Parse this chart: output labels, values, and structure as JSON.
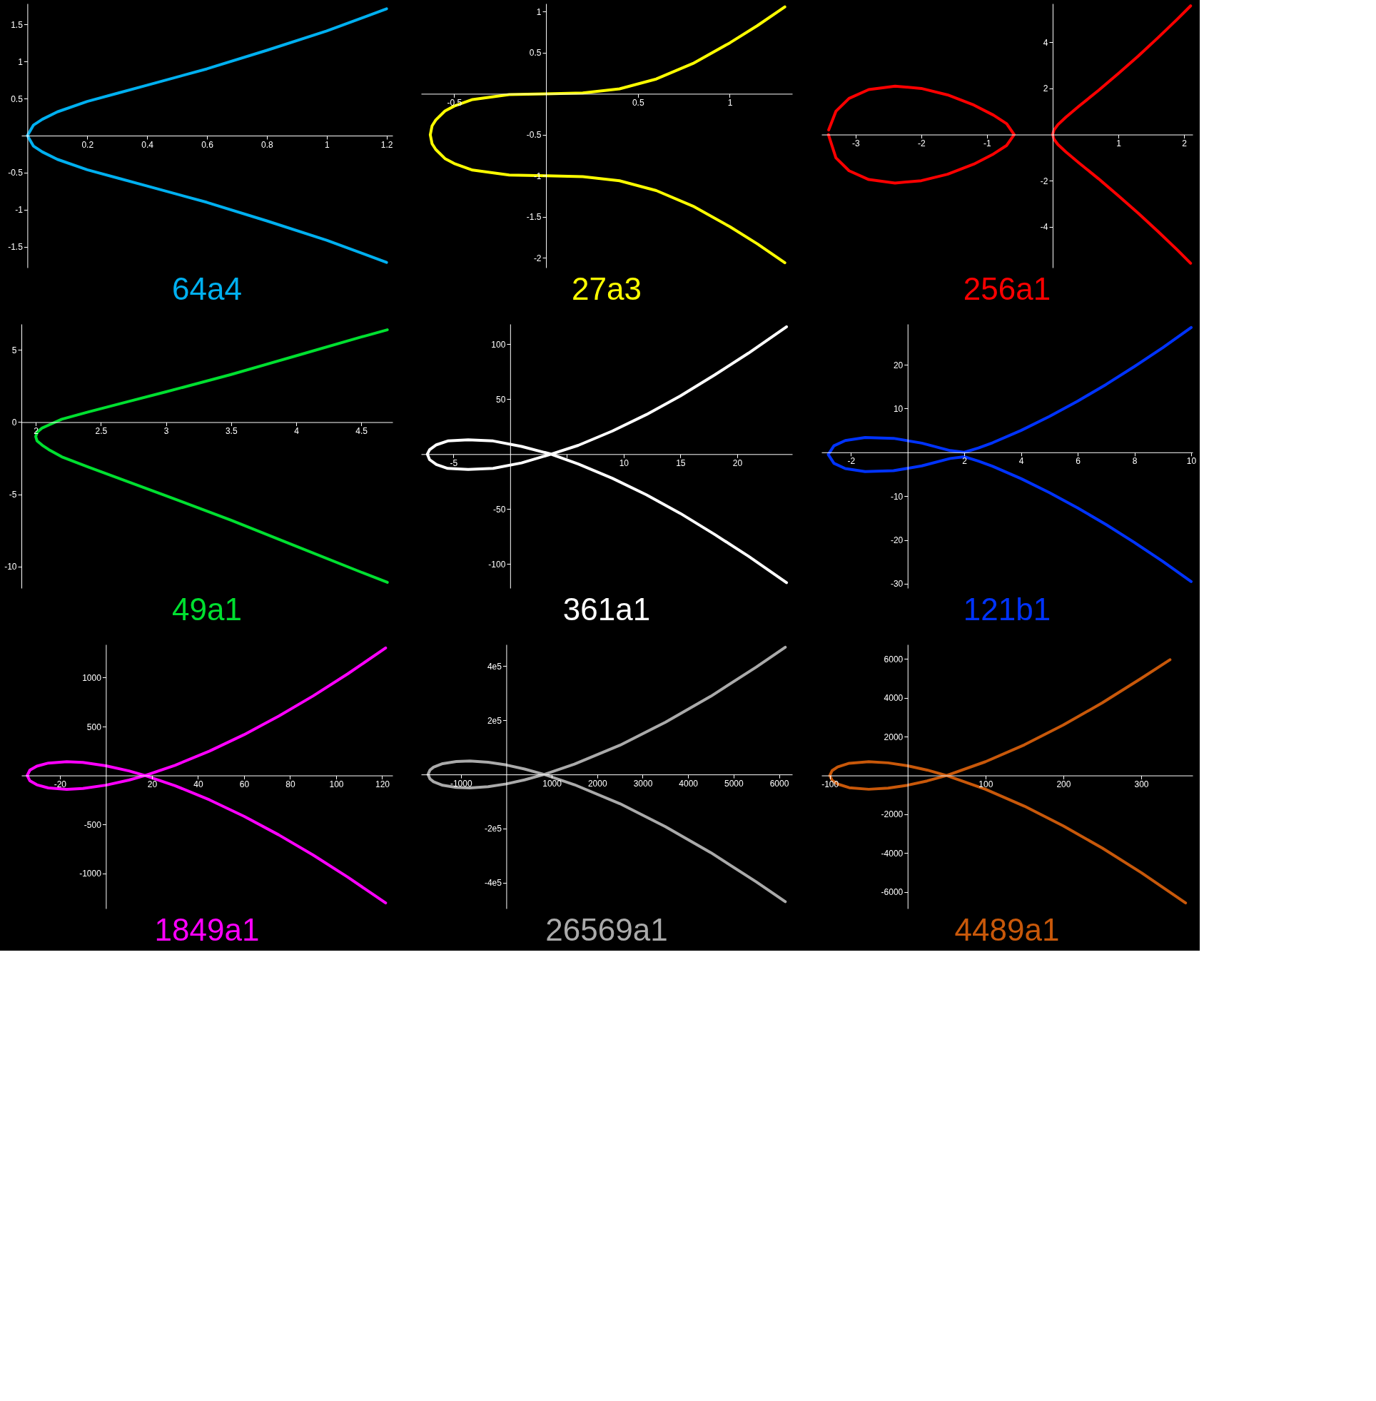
{
  "chart_data": [
    {
      "type": "line",
      "title": "64a4",
      "xlim": [
        -0.02,
        1.22
      ],
      "ylim": [
        -1.78,
        1.78
      ],
      "xticks": [
        0.2,
        0.4,
        0.6,
        0.8,
        1,
        1.2
      ],
      "yticks": [
        -1.5,
        -1,
        -0.5,
        0.5,
        1,
        1.5
      ],
      "grid": false,
      "series": [
        {
          "color": "#00b0f0",
          "x": [
            1.2,
            1.0,
            0.8,
            0.6,
            0.4,
            0.3,
            0.2,
            0.1,
            0.05,
            0.02,
            0,
            0.02,
            0.05,
            0.1,
            0.2,
            0.3,
            0.4,
            0.6,
            0.8,
            1.0,
            1.2
          ],
          "values": [
            -1.71,
            -1.41,
            -1.15,
            -0.9,
            -0.68,
            -0.57,
            -0.46,
            -0.32,
            -0.22,
            -0.14,
            0,
            0.14,
            0.22,
            0.32,
            0.46,
            0.57,
            0.68,
            0.9,
            1.15,
            1.41,
            1.71
          ]
        }
      ]
    },
    {
      "type": "line",
      "title": "256a1",
      "xlim": [
        -3.52,
        2.13
      ],
      "ylim": [
        -5.77,
        5.68
      ],
      "xticks": [
        -3,
        -2,
        -1,
        1,
        2
      ],
      "yticks": [
        -4,
        -2,
        2,
        4
      ],
      "grid": false,
      "series": [
        {
          "color": "#ff0000",
          "x": [
            -3.414,
            -3.3,
            -3.1,
            -2.8,
            -2.4,
            -2.0,
            -1.6,
            -1.2,
            -0.9,
            -0.7,
            -0.586,
            -0.7,
            -0.9,
            -1.2,
            -1.6,
            -2.0,
            -2.4,
            -2.8,
            -3.1,
            -3.3,
            -3.41
          ],
          "values": [
            0,
            -1.01,
            -1.57,
            -1.95,
            -2.1,
            -2.0,
            -1.72,
            -1.28,
            -0.84,
            -0.47,
            0,
            0.47,
            0.84,
            1.28,
            1.72,
            2.0,
            2.1,
            1.95,
            1.57,
            1.01,
            0.2
          ]
        },
        {
          "color": "#ff0000",
          "x": [
            2.1,
            1.9,
            1.6,
            1.3,
            1.0,
            0.7,
            0.4,
            0.2,
            0.08,
            0.02,
            0,
            0.02,
            0.08,
            0.2,
            0.4,
            0.7,
            1.0,
            1.3,
            1.6,
            1.9,
            2.1
          ],
          "values": [
            -5.58,
            -5.01,
            -4.19,
            -3.4,
            -2.65,
            -1.92,
            -1.23,
            -0.75,
            -0.43,
            -0.2,
            0,
            0.2,
            0.43,
            0.75,
            1.23,
            1.92,
            2.65,
            3.4,
            4.19,
            5.01,
            5.58
          ]
        }
      ]
    },
    {
      "type": "line",
      "title": "27a3",
      "xlim": [
        -0.68,
        1.34
      ],
      "ylim": [
        -2.12,
        1.1
      ],
      "xticks": [
        -0.5,
        0.5,
        1
      ],
      "yticks": [
        -2,
        -1.5,
        -1,
        -0.5,
        0.5,
        1
      ],
      "grid": false,
      "series": [
        {
          "color": "#ffff00",
          "x": [
            1.3,
            1.15,
            1.0,
            0.8,
            0.6,
            0.4,
            0.2,
            0,
            -0.2,
            -0.4,
            -0.5,
            -0.55,
            -0.6,
            -0.62,
            -0.63,
            -0.62,
            -0.6,
            -0.55,
            -0.5,
            -0.4,
            -0.2,
            0,
            0.2,
            0.4,
            0.6,
            0.8,
            1.0,
            1.15,
            1.3
          ],
          "values": [
            -2.06,
            -1.83,
            -1.62,
            -1.37,
            -1.18,
            -1.06,
            -1.01,
            -1,
            -0.99,
            -0.93,
            -0.85,
            -0.79,
            -0.68,
            -0.61,
            -0.5,
            -0.39,
            -0.32,
            -0.21,
            -0.15,
            -0.07,
            -0.01,
            0,
            0.01,
            0.06,
            0.18,
            0.37,
            0.62,
            0.83,
            1.06
          ]
        }
      ]
    },
    {
      "type": "line",
      "title": "49a1",
      "xlim": [
        1.89,
        4.74
      ],
      "ylim": [
        -11.5,
        6.8
      ],
      "xticks": [
        2,
        2.5,
        3,
        3.5,
        4,
        4.5
      ],
      "yticks": [
        -10,
        -5,
        0,
        5
      ],
      "grid": false,
      "series": [
        {
          "color": "#00e030",
          "x": [
            4.7,
            4.5,
            4.0,
            3.5,
            3.0,
            2.7,
            2.4,
            2.2,
            2.1,
            2.05,
            2.01,
            2,
            2.01,
            2.05,
            2.1,
            2.2,
            2.4,
            2.7,
            3.0,
            3.5,
            4.0,
            4.5,
            4.7
          ],
          "values": [
            -11.1,
            -10.4,
            -8.6,
            -6.8,
            -5.1,
            -4.1,
            -3.1,
            -2.4,
            -1.9,
            -1.6,
            -1.3,
            -1,
            -0.7,
            -0.4,
            -0.2,
            0.2,
            0.7,
            1.4,
            2.1,
            3.3,
            4.6,
            5.9,
            6.4
          ]
        }
      ]
    },
    {
      "type": "line",
      "title": "121b1",
      "xlim": [
        -3.04,
        10.05
      ],
      "ylim": [
        -31,
        29.3
      ],
      "xticks": [
        -2,
        2,
        4,
        6,
        8,
        10
      ],
      "yticks": [
        -30,
        -20,
        -10,
        10,
        20
      ],
      "grid": false,
      "series": [
        {
          "color": "#0033ff",
          "x": [
            10,
            9,
            8,
            7,
            6,
            5,
            4,
            3,
            2.5,
            2,
            1.5,
            0.5,
            -0.5,
            -1.5,
            -2.2,
            -2.6,
            -2.8,
            -2.6,
            -2.2,
            -1.5,
            -0.5,
            0.5,
            1.5,
            2,
            2.5,
            3,
            4,
            5,
            6,
            7,
            8,
            9,
            10
          ],
          "values": [
            -29.5,
            -24.9,
            -20.6,
            -16.5,
            -12.7,
            -9.2,
            -6,
            -3.2,
            -2,
            -1,
            -1.4,
            -3.1,
            -4.2,
            -4.4,
            -3.7,
            -2.5,
            -0.5,
            1.5,
            2.7,
            3.4,
            3.2,
            2.1,
            0.4,
            0,
            1,
            2.2,
            5,
            8.2,
            11.7,
            15.5,
            19.6,
            23.9,
            28.5
          ]
        }
      ]
    },
    {
      "type": "line",
      "title": "361a1",
      "xlim": [
        -7.85,
        24.85
      ],
      "ylim": [
        -122,
        118.5
      ],
      "xticks": [
        -5,
        {
          "value": 5,
          "label": null
        },
        10,
        15,
        20
      ],
      "yticks": [
        -100,
        -50,
        50,
        100
      ],
      "grid": false,
      "series": [
        {
          "color": "#ffffff",
          "x": [
            24.35,
            21,
            18,
            15,
            12,
            9,
            6,
            3.6,
            1,
            -1.5,
            -3.7,
            -5.5,
            -6.5,
            -7.1,
            -7.3,
            -7.1,
            -6.5,
            -5.5,
            -3.7,
            -1.5,
            1,
            3.6,
            6,
            9,
            12,
            15,
            18,
            21,
            24.35
          ],
          "values": [
            -117,
            -93,
            -73,
            -54,
            -37,
            -22,
            -9,
            0,
            7,
            12,
            13,
            12,
            8.5,
            4,
            0,
            -5,
            -9.5,
            -13,
            -14,
            -13,
            -8,
            0,
            8,
            21,
            36,
            53,
            72,
            92,
            116
          ]
        }
      ]
    },
    {
      "type": "line",
      "title": "1849a1",
      "xlim": [
        -36.7,
        124.5
      ],
      "ylim": [
        -1360,
        1339
      ],
      "xticks": [
        -20,
        20,
        40,
        60,
        80,
        100,
        120
      ],
      "yticks": [
        -1000,
        -500,
        500,
        1000
      ],
      "grid": false,
      "series": [
        {
          "color": "#ff00ff",
          "x": [
            121.5,
            105,
            90,
            75,
            60,
            45,
            30,
            17,
            10,
            0,
            -10,
            -17,
            -25,
            -30,
            -33,
            -34.2,
            -33,
            -30,
            -25,
            -17,
            -10,
            0,
            10,
            17,
            30,
            45,
            60,
            75,
            90,
            105,
            121.5
          ],
          "values": [
            -1303,
            -1038,
            -813,
            -606,
            -417,
            -249,
            -104,
            0,
            47,
            99,
            133,
            141,
            127,
            95,
            55,
            0,
            -55,
            -95,
            -127,
            -141,
            -133,
            -99,
            -47,
            0,
            104,
            249,
            417,
            606,
            813,
            1038,
            1303
          ]
        }
      ]
    },
    {
      "type": "line",
      "title": "4489a1",
      "xlim": [
        -110.7,
        366
      ],
      "ylim": [
        -6853,
        6747
      ],
      "xticks": [
        -100,
        100,
        200,
        300
      ],
      "yticks": [
        -6000,
        -4000,
        -2000,
        2000,
        4000,
        6000
      ],
      "grid": false,
      "series": [
        {
          "color": "#c8580a",
          "x": [
            357,
            300,
            250,
            200,
            150,
            100,
            50,
            25,
            0,
            -25,
            -50,
            -75,
            -90,
            -97,
            -100,
            -97,
            -90,
            -75,
            -50,
            -25,
            0,
            25,
            50,
            100,
            150,
            200,
            250,
            300,
            337
          ],
          "values": [
            -6560,
            -5000,
            -3740,
            -2600,
            -1580,
            -710,
            0,
            280,
            500,
            650,
            710,
            630,
            440,
            250,
            0,
            -250,
            -440,
            -630,
            -710,
            -650,
            -500,
            -280,
            0,
            710,
            1580,
            2600,
            3740,
            5000,
            5960
          ]
        }
      ]
    },
    {
      "type": "line",
      "title": "26569a1",
      "xlim": [
        -1875,
        6290
      ],
      "ylim": [
        -495600,
        480400
      ],
      "xticks": [
        -1000,
        1000,
        2000,
        3000,
        4000,
        5000,
        6000
      ],
      "yticks": [
        {
          "value": -400000,
          "label": "-4e5"
        },
        {
          "value": -200000,
          "label": "-2e5"
        },
        {
          "value": 200000,
          "label": "2e5"
        },
        {
          "value": 400000,
          "label": "4e5"
        }
      ],
      "grid": false,
      "series": [
        {
          "color": "#aaaaaa",
          "x": [
            6138,
            5500,
            4500,
            3500,
            2500,
            1500,
            832,
            400,
            0,
            -400,
            -800,
            -1100,
            -1400,
            -1600,
            -1680,
            -1722,
            -1680,
            -1600,
            -1400,
            -1100,
            -800,
            -400,
            0,
            400,
            832,
            1500,
            2500,
            3500,
            4500,
            5500,
            6138
          ],
          "values": [
            -470000,
            -397000,
            -289000,
            -193000,
            -108000,
            -38000,
            0,
            20000,
            35000,
            45000,
            50000,
            48000,
            40000,
            27000,
            16000,
            0,
            -16000,
            -27000,
            -40000,
            -48000,
            -50000,
            -45000,
            -35000,
            -20000,
            0,
            38000,
            108000,
            193000,
            289000,
            397000,
            470000
          ]
        }
      ]
    }
  ]
}
